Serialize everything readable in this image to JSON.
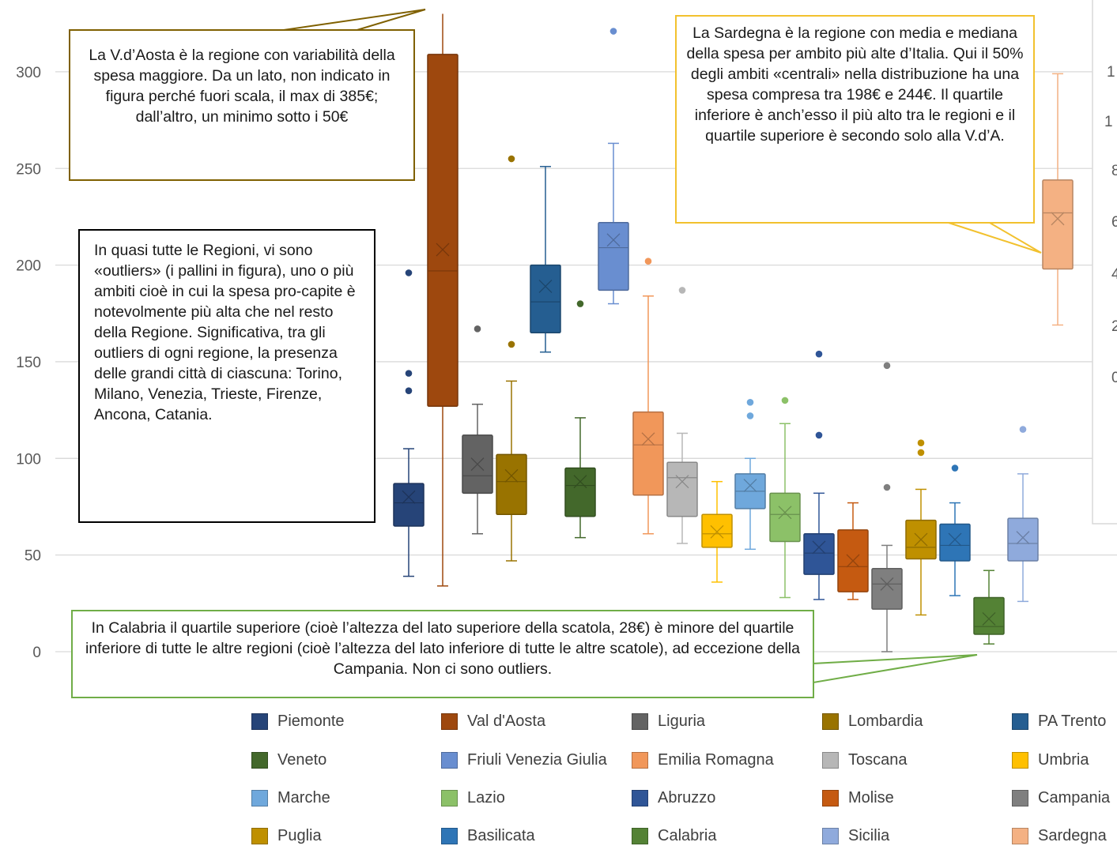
{
  "chart_data": {
    "type": "boxplot",
    "ylim": [
      0,
      330
    ],
    "yticks": [
      0,
      50,
      100,
      150,
      200,
      250,
      300
    ],
    "series": [
      {
        "name": "Piemonte",
        "color": "#264478",
        "min": 39,
        "q1": 65,
        "median": 77,
        "q3": 87,
        "max": 105,
        "mean": 80,
        "outliers": [
          135,
          144,
          196
        ]
      },
      {
        "name": "Val d'Aosta",
        "color": "#9e480e",
        "min": 34,
        "q1": 127,
        "median": 197,
        "q3": 309,
        "max": 330,
        "mean": 208,
        "outliers": []
      },
      {
        "name": "Liguria",
        "color": "#636363",
        "min": 61,
        "q1": 82,
        "median": 91,
        "q3": 112,
        "max": 128,
        "mean": 97,
        "outliers": [
          167
        ]
      },
      {
        "name": "Lombardia",
        "color": "#997300",
        "min": 47,
        "q1": 71,
        "median": 88,
        "q3": 102,
        "max": 140,
        "mean": 91,
        "outliers": [
          159,
          255
        ]
      },
      {
        "name": "PA Trento",
        "color": "#255e91",
        "min": 155,
        "q1": 165,
        "median": 181,
        "q3": 200,
        "max": 251,
        "mean": 189,
        "outliers": []
      },
      {
        "name": "Veneto",
        "color": "#43682b",
        "min": 59,
        "q1": 70,
        "median": 86,
        "q3": 95,
        "max": 121,
        "mean": 88,
        "outliers": [
          180
        ]
      },
      {
        "name": "Friuli Venezia Giulia",
        "color": "#698ed0",
        "min": 180,
        "q1": 187,
        "median": 209,
        "q3": 222,
        "max": 263,
        "mean": 213,
        "outliers": [
          321
        ]
      },
      {
        "name": "Emilia Romagna",
        "color": "#f1975a",
        "min": 61,
        "q1": 81,
        "median": 107,
        "q3": 124,
        "max": 184,
        "mean": 110,
        "outliers": [
          202
        ]
      },
      {
        "name": "Toscana",
        "color": "#b7b7b7",
        "min": 56,
        "q1": 70,
        "median": 90,
        "q3": 98,
        "max": 113,
        "mean": 88,
        "outliers": [
          187
        ]
      },
      {
        "name": "Umbria",
        "color": "#ffc000",
        "min": 36,
        "q1": 54,
        "median": 61,
        "q3": 71,
        "max": 88,
        "mean": 62,
        "outliers": []
      },
      {
        "name": "Marche",
        "color": "#6fa8dc",
        "min": 53,
        "q1": 74,
        "median": 83,
        "q3": 92,
        "max": 100,
        "mean": 86,
        "outliers": [
          122,
          129
        ]
      },
      {
        "name": "Lazio",
        "color": "#8cc168",
        "min": 28,
        "q1": 57,
        "median": 71,
        "q3": 82,
        "max": 118,
        "mean": 72,
        "outliers": [
          130
        ]
      },
      {
        "name": "Abruzzo",
        "color": "#2f5597",
        "min": 27,
        "q1": 40,
        "median": 51,
        "q3": 61,
        "max": 82,
        "mean": 54,
        "outliers": [
          112,
          154
        ]
      },
      {
        "name": "Molise",
        "color": "#c55a11",
        "min": 27,
        "q1": 31,
        "median": 44,
        "q3": 63,
        "max": 77,
        "mean": 47,
        "outliers": []
      },
      {
        "name": "Campania",
        "color": "#7f7f7f",
        "min": 0,
        "q1": 22,
        "median": 35,
        "q3": 43,
        "max": 55,
        "mean": 35,
        "outliers": [
          85,
          148
        ]
      },
      {
        "name": "Puglia",
        "color": "#bf9000",
        "min": 19,
        "q1": 48,
        "median": 54,
        "q3": 68,
        "max": 84,
        "mean": 58,
        "outliers": [
          103,
          108
        ]
      },
      {
        "name": "Basilicata",
        "color": "#2e75b6",
        "min": 29,
        "q1": 47,
        "median": 55,
        "q3": 66,
        "max": 77,
        "mean": 58,
        "outliers": [
          95
        ]
      },
      {
        "name": "Calabria",
        "color": "#548235",
        "min": 4,
        "q1": 9,
        "median": 13,
        "q3": 28,
        "max": 42,
        "mean": 17,
        "outliers": []
      },
      {
        "name": "Sicilia",
        "color": "#8faadc",
        "min": 26,
        "q1": 47,
        "median": 56,
        "q3": 69,
        "max": 92,
        "mean": 59,
        "outliers": [
          115
        ]
      },
      {
        "name": "Sardegna",
        "color": "#f4b183",
        "min": 169,
        "q1": 198,
        "median": 227,
        "q3": 244,
        "max": 299,
        "mean": 224,
        "outliers": []
      }
    ]
  },
  "callouts": {
    "aosta": "La V.d’Aosta è la regione con variabilità della spesa maggiore. Da un lato, non indicato in figura perché fuori scala, il max di 385€; dall’altro, un minimo sotto i 50€",
    "sardegna": "La Sardegna  è la regione con media e mediana della spesa per ambito più alte d’Italia. Qui il 50% degli ambiti «centrali» nella distribuzione ha una spesa compresa tra 198€ e 244€. Il quartile inferiore è anch’esso il più alto tra le regioni e il quartile superiore è secondo solo alla V.d’A.",
    "outliers": "In quasi tutte le Regioni, vi sono «outliers» (i pallini in figura), uno o più ambiti cioè in cui la spesa pro-capite è notevolmente più alta che nel resto della Regione. Significativa, tra gli outliers di ogni regione, la presenza delle grandi città di ciascuna: Torino, Milano, Venezia,  Trieste, Firenze, Ancona, Catania.",
    "calabria": "In Calabria il quartile superiore (cioè l’altezza del lato superiore della scatola, 28€) è minore del quartile inferiore di tutte le altre regioni (cioè l’altezza del lato inferiore di tutte le altre scatole), ad eccezione della Campania. Non ci sono outliers."
  }
}
